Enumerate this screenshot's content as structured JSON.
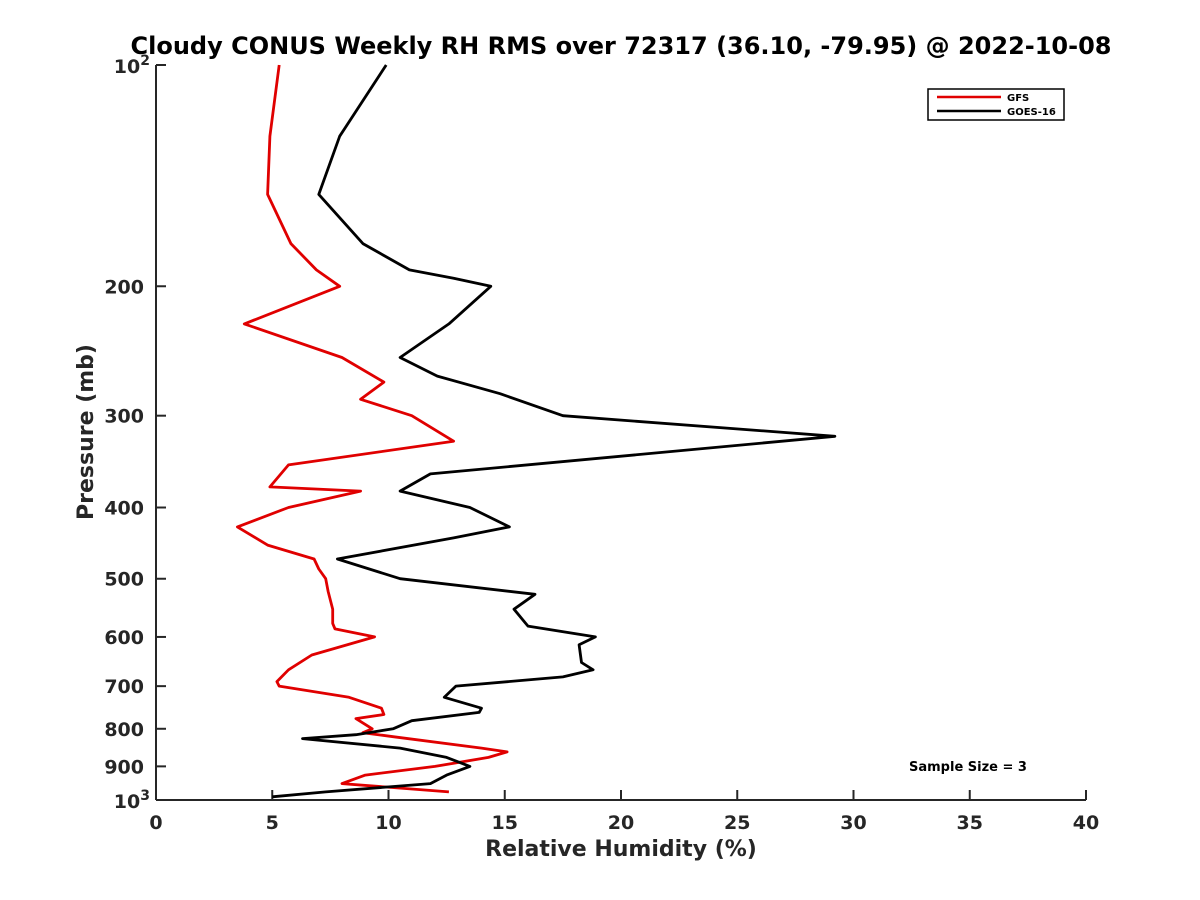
{
  "chart_data": {
    "type": "line",
    "title": "Cloudy CONUS Weekly RH RMS over 72317 (36.10, -79.95) @ 2022-10-08",
    "xlabel": "Relative Humidity (%)",
    "ylabel": "Pressure (mb)",
    "xlim": [
      0,
      40
    ],
    "ylim": [
      100,
      1000
    ],
    "y_scale": "log",
    "y_reversed": true,
    "grid": false,
    "legend_placement": "top-right",
    "x_ticks": [
      0,
      5,
      10,
      15,
      20,
      25,
      30,
      35,
      40
    ],
    "y_ticks": [
      {
        "value": 100,
        "label": "10",
        "sup": "2"
      },
      {
        "value": 200,
        "label": "200"
      },
      {
        "value": 300,
        "label": "300"
      },
      {
        "value": 400,
        "label": "400"
      },
      {
        "value": 500,
        "label": "500"
      },
      {
        "value": 600,
        "label": "600"
      },
      {
        "value": 700,
        "label": "700"
      },
      {
        "value": 800,
        "label": "800"
      },
      {
        "value": 900,
        "label": "900"
      },
      {
        "value": 1000,
        "label": "10",
        "sup": "3"
      }
    ],
    "annotation": "Sample Size = 3",
    "series": [
      {
        "name": "GFS",
        "color": "#e00000",
        "points": [
          [
            5.3,
            100
          ],
          [
            4.9,
            125
          ],
          [
            4.8,
            150
          ],
          [
            5.8,
            175
          ],
          [
            6.9,
            190
          ],
          [
            7.9,
            200
          ],
          [
            3.8,
            225
          ],
          [
            8.0,
            250
          ],
          [
            9.8,
            270
          ],
          [
            8.8,
            285
          ],
          [
            11.0,
            300
          ],
          [
            12.8,
            325
          ],
          [
            5.7,
            350
          ],
          [
            4.9,
            375
          ],
          [
            8.8,
            380
          ],
          [
            5.7,
            400
          ],
          [
            3.5,
            425
          ],
          [
            4.8,
            450
          ],
          [
            6.8,
            470
          ],
          [
            7.0,
            485
          ],
          [
            7.3,
            500
          ],
          [
            7.4,
            520
          ],
          [
            7.6,
            550
          ],
          [
            7.6,
            575
          ],
          [
            7.7,
            585
          ],
          [
            9.4,
            600
          ],
          [
            6.7,
            635
          ],
          [
            5.7,
            665
          ],
          [
            5.2,
            690
          ],
          [
            5.3,
            700
          ],
          [
            8.3,
            725
          ],
          [
            9.7,
            750
          ],
          [
            9.8,
            765
          ],
          [
            8.6,
            775
          ],
          [
            9.3,
            800
          ],
          [
            8.9,
            810
          ],
          [
            10.2,
            820
          ],
          [
            14.0,
            850
          ],
          [
            15.1,
            860
          ],
          [
            14.3,
            875
          ],
          [
            12.0,
            900
          ],
          [
            9.0,
            925
          ],
          [
            8.0,
            950
          ],
          [
            12.6,
            975
          ]
        ]
      },
      {
        "name": "GOES-16",
        "color": "#000000",
        "points": [
          [
            9.9,
            100
          ],
          [
            7.9,
            125
          ],
          [
            7.0,
            150
          ],
          [
            8.9,
            175
          ],
          [
            10.9,
            190
          ],
          [
            12.8,
            195
          ],
          [
            14.4,
            200
          ],
          [
            12.6,
            225
          ],
          [
            10.5,
            250
          ],
          [
            12.1,
            265
          ],
          [
            14.8,
            280
          ],
          [
            17.5,
            300
          ],
          [
            29.2,
            320
          ],
          [
            11.8,
            360
          ],
          [
            10.5,
            380
          ],
          [
            13.5,
            400
          ],
          [
            15.2,
            425
          ],
          [
            12.8,
            440
          ],
          [
            7.8,
            470
          ],
          [
            10.5,
            500
          ],
          [
            16.3,
            525
          ],
          [
            15.4,
            550
          ],
          [
            15.9,
            575
          ],
          [
            16.0,
            580
          ],
          [
            18.9,
            600
          ],
          [
            18.2,
            615
          ],
          [
            18.3,
            650
          ],
          [
            18.8,
            665
          ],
          [
            17.5,
            680
          ],
          [
            12.9,
            700
          ],
          [
            12.4,
            725
          ],
          [
            14.0,
            750
          ],
          [
            13.9,
            760
          ],
          [
            11.0,
            780
          ],
          [
            10.2,
            800
          ],
          [
            8.6,
            815
          ],
          [
            6.3,
            825
          ],
          [
            10.5,
            850
          ],
          [
            12.5,
            875
          ],
          [
            13.5,
            900
          ],
          [
            12.5,
            925
          ],
          [
            11.8,
            950
          ],
          [
            7.3,
            975
          ],
          [
            5.0,
            990
          ]
        ]
      }
    ]
  }
}
